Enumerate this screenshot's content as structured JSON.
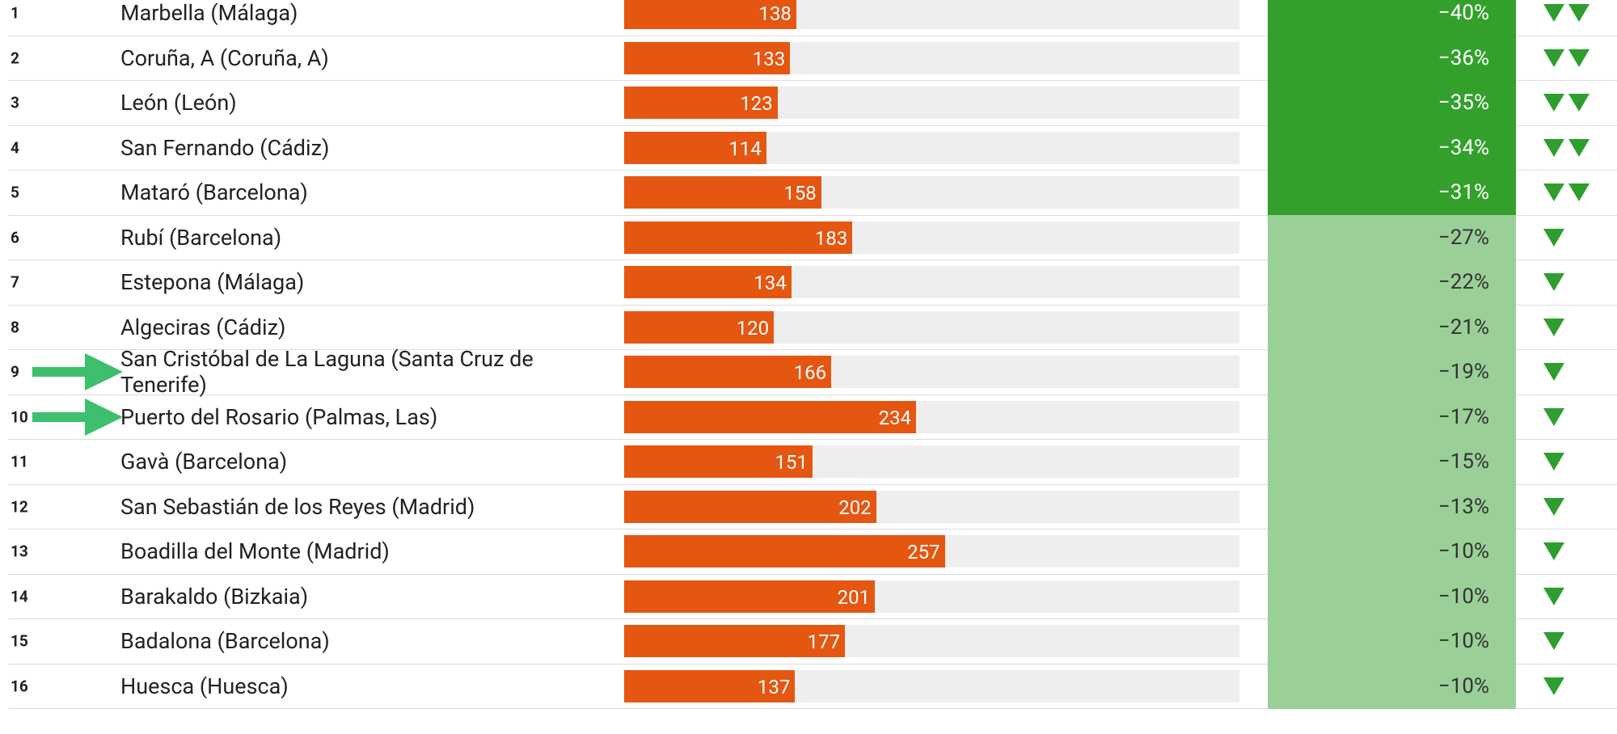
{
  "rows": [
    {
      "rank": 1,
      "name": "Marbella (Málaga)",
      "value": 138,
      "change": "−40%"
    },
    {
      "rank": 2,
      "name": "Coruña, A (Coruña, A)",
      "value": 133,
      "change": "−36%"
    },
    {
      "rank": 3,
      "name": "León (León)",
      "value": 123,
      "change": "−35%"
    },
    {
      "rank": 4,
      "name": "San Fernando (Cádiz)",
      "value": 114,
      "change": "−34%"
    },
    {
      "rank": 5,
      "name": "Mataró (Barcelona)",
      "value": 158,
      "change": "−31%"
    },
    {
      "rank": 6,
      "name": "Rubí (Barcelona)",
      "value": 183,
      "change": "−27%"
    },
    {
      "rank": 7,
      "name": "Estepona (Málaga)",
      "value": 134,
      "change": "−22%"
    },
    {
      "rank": 8,
      "name": "Algeciras (Cádiz)",
      "value": 120,
      "change": "−21%"
    },
    {
      "rank": 9,
      "name": "San Cristóbal de La Laguna (Santa Cruz de Tenerife)",
      "value": 166,
      "change": "−19%"
    },
    {
      "rank": 10,
      "name": "Puerto del Rosario (Palmas, Las)",
      "value": 234,
      "change": "−17%"
    },
    {
      "rank": 11,
      "name": "Gavà (Barcelona)",
      "value": 151,
      "change": "−15%"
    },
    {
      "rank": 12,
      "name": "San Sebastián de los Reyes (Madrid)",
      "value": 202,
      "change": "−13%"
    },
    {
      "rank": 13,
      "name": "Boadilla del Monte (Madrid)",
      "value": 257,
      "change": "−10%"
    },
    {
      "rank": 14,
      "name": "Barakaldo (Bizkaia)",
      "value": 201,
      "change": "−10%"
    },
    {
      "rank": 15,
      "name": "Badalona (Barcelona)",
      "value": 177,
      "change": "−10%"
    },
    {
      "rank": 16,
      "name": "Huesca (Huesca)",
      "value": 137,
      "change": "−10%"
    }
  ]
}
